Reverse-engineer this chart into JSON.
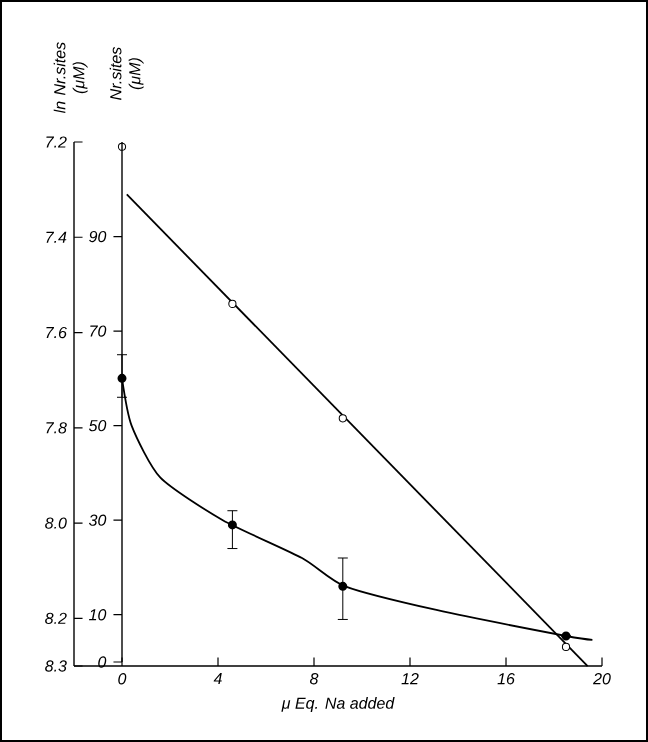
{
  "chart_data": {
    "type": "scatter",
    "xlabel": "μ Eq. Na added",
    "ylabel": "ln Nr.sites (μM)",
    "y2label": "Nr.sites (μM)",
    "xlim": [
      -2,
      20
    ],
    "xticks": [
      0,
      4,
      8,
      12,
      16,
      20
    ],
    "ylim": [
      8.3,
      7.2
    ],
    "yticks": [
      7.2,
      7.4,
      7.6,
      7.8,
      {
        "value": 8,
        "label": "8.0"
      },
      8.2,
      8.3
    ],
    "y2lim": [
      0,
      110
    ],
    "y2ticks": [
      0,
      10,
      30,
      50,
      70,
      90
    ],
    "series": [
      {
        "axis": "y2",
        "marker": "circle",
        "color": "#000000",
        "x": [
          0,
          4.6,
          9.2,
          18.5
        ],
        "values": [
          60,
          29,
          16,
          5.5
        ],
        "errors": [
          [
            56,
            65
          ],
          [
            24,
            32
          ],
          [
            9,
            22
          ],
          null
        ]
      },
      {
        "axis": "y2",
        "type": "line",
        "marker": "none",
        "color": "#000000",
        "x": [
          0,
          0.4,
          1.6,
          4.2,
          7.5,
          9.3,
          13.1,
          18.5,
          19.6
        ],
        "values": [
          60,
          50,
          39,
          30,
          22,
          16,
          11,
          5.5,
          4.7
        ]
      },
      {
        "marker": "circle",
        "color": "#000000",
        "x": [
          0,
          4.6,
          9.2,
          18.5
        ],
        "values": [
          7.21,
          7.54,
          7.78,
          8.26
        ]
      },
      {
        "type": "line",
        "marker": "none",
        "color": "#000000",
        "x": [
          0.2,
          19.4
        ],
        "values": [
          7.31,
          8.3
        ]
      }
    ]
  }
}
